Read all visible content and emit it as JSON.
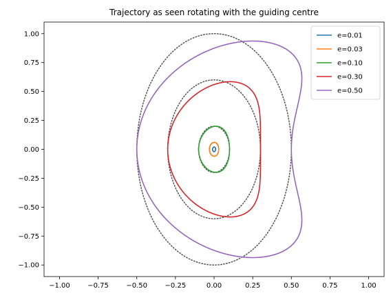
{
  "chart_data": {
    "type": "line",
    "title": "Trajectory as seen rotating with the guiding centre",
    "xlabel": "",
    "ylabel": "",
    "xlim": [
      -1.1,
      1.1
    ],
    "ylim": [
      -1.1,
      1.1
    ],
    "x_ticks": [
      -1.0,
      -0.75,
      -0.5,
      -0.25,
      0.0,
      0.25,
      0.5,
      0.75,
      1.0
    ],
    "y_ticks": [
      -1.0,
      -0.75,
      -0.5,
      -0.25,
      0.0,
      0.25,
      0.5,
      0.75,
      1.0
    ],
    "x_tick_labels": [
      "−1.00",
      "−0.75",
      "−0.50",
      "−0.25",
      "0.00",
      "0.25",
      "0.50",
      "0.75",
      "1.00"
    ],
    "y_tick_labels": [
      "−1.00",
      "−0.75",
      "−0.50",
      "−0.25",
      "0.00",
      "0.25",
      "0.50",
      "0.75",
      "1.00"
    ],
    "grid": false,
    "legend_position": "top-right",
    "series": [
      {
        "name": "e=0.01",
        "e": 0.01,
        "color": "#1f77b4"
      },
      {
        "name": "e=0.03",
        "e": 0.03,
        "color": "#ff7f0e"
      },
      {
        "name": "e=0.10",
        "e": 0.1,
        "color": "#2ca02c"
      },
      {
        "name": "e=0.30",
        "e": 0.3,
        "color": "#d62728"
      },
      {
        "name": "e=0.50",
        "e": 0.5,
        "color": "#9467bd"
      }
    ],
    "reference_curves": {
      "style": "dotted",
      "color": "#555555",
      "ellipses": [
        {
          "a": 0.01,
          "b": 0.02
        },
        {
          "a": 0.03,
          "b": 0.06
        },
        {
          "a": 0.1,
          "b": 0.2
        },
        {
          "a": 0.3,
          "b": 0.6
        },
        {
          "a": 0.5,
          "b": 1.0
        }
      ]
    }
  }
}
